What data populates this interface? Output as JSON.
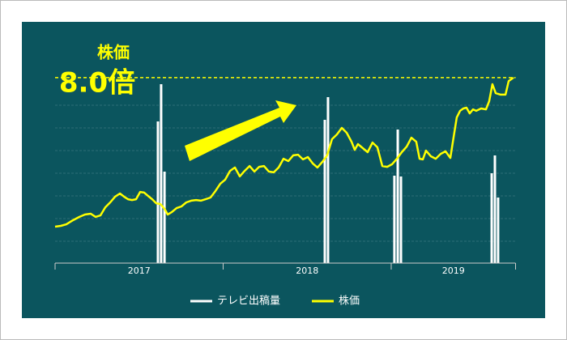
{
  "chart_data": {
    "type": "line",
    "annotation": "株価",
    "reference": {
      "value": 8,
      "label": "8.0倍"
    },
    "xlim": [
      2017,
      2019.74
    ],
    "xticks": [
      2017,
      2018,
      2019
    ],
    "ylim": [
      -0.71,
      8.49
    ],
    "y2lim": [
      0,
      242
    ],
    "series": [
      {
        "name": "テレビ出稿量",
        "type": "bar",
        "axis": "y2",
        "color": "#ffffff",
        "x": [
          2017.612,
          2017.631,
          2017.651,
          2018.605,
          2018.624,
          2019.019,
          2019.039,
          2019.058,
          2019.598,
          2019.617,
          2019.636
        ],
        "values": [
          175,
          221,
          113,
          177,
          205,
          108,
          165,
          107,
          111,
          133,
          81
        ]
      },
      {
        "name": "株価",
        "type": "line",
        "color": "#ffff00",
        "x": [
          2017.0,
          2017.034,
          2017.067,
          2017.106,
          2017.145,
          2017.178,
          2017.212,
          2017.241,
          2017.27,
          2017.299,
          2017.328,
          2017.357,
          2017.386,
          2017.41,
          2017.434,
          2017.458,
          2017.482,
          2017.506,
          2017.53,
          2017.554,
          2017.578,
          2017.602,
          2017.627,
          2017.651,
          2017.67,
          2017.694,
          2017.723,
          2017.752,
          2017.781,
          2017.81,
          2017.839,
          2017.867,
          2017.896,
          2017.925,
          2017.954,
          2017.983,
          2018.012,
          2018.041,
          2018.07,
          2018.099,
          2018.128,
          2018.157,
          2018.186,
          2018.214,
          2018.243,
          2018.272,
          2018.301,
          2018.33,
          2018.359,
          2018.388,
          2018.417,
          2018.446,
          2018.475,
          2018.504,
          2018.533,
          2018.561,
          2018.59,
          2018.619,
          2018.648,
          2018.677,
          2018.706,
          2018.735,
          2018.764,
          2018.783,
          2018.802,
          2018.831,
          2018.86,
          2018.889,
          2018.918,
          2018.947,
          2018.976,
          2019.005,
          2019.034,
          2019.063,
          2019.092,
          2019.12,
          2019.149,
          2019.169,
          2019.188,
          2019.207,
          2019.236,
          2019.265,
          2019.294,
          2019.323,
          2019.352,
          2019.371,
          2019.39,
          2019.41,
          2019.429,
          2019.448,
          2019.467,
          2019.487,
          2019.506,
          2019.535,
          2019.564,
          2019.583,
          2019.602,
          2019.622,
          2019.651,
          2019.68,
          2019.699,
          2019.728
        ],
        "values": [
          1.0,
          1.04,
          1.11,
          1.3,
          1.46,
          1.57,
          1.61,
          1.46,
          1.53,
          1.91,
          2.14,
          2.41,
          2.56,
          2.41,
          2.29,
          2.25,
          2.29,
          2.63,
          2.6,
          2.44,
          2.29,
          2.1,
          2.06,
          1.84,
          1.57,
          1.68,
          1.87,
          1.95,
          2.14,
          2.22,
          2.25,
          2.22,
          2.29,
          2.37,
          2.67,
          3.02,
          3.21,
          3.62,
          3.78,
          3.36,
          3.62,
          3.85,
          3.59,
          3.81,
          3.85,
          3.59,
          3.55,
          3.78,
          4.19,
          4.08,
          4.35,
          4.38,
          4.16,
          4.27,
          3.97,
          3.78,
          4.04,
          4.35,
          5.11,
          5.33,
          5.64,
          5.41,
          4.99,
          4.61,
          4.88,
          4.69,
          4.5,
          4.95,
          4.73,
          3.85,
          3.81,
          3.93,
          4.19,
          4.5,
          4.76,
          5.18,
          4.99,
          4.19,
          4.16,
          4.57,
          4.31,
          4.19,
          4.42,
          4.54,
          4.23,
          5.18,
          6.13,
          6.44,
          6.55,
          6.59,
          6.32,
          6.51,
          6.44,
          6.55,
          6.51,
          6.89,
          7.69,
          7.27,
          7.2,
          7.2,
          7.84,
          8.0
        ]
      }
    ]
  }
}
